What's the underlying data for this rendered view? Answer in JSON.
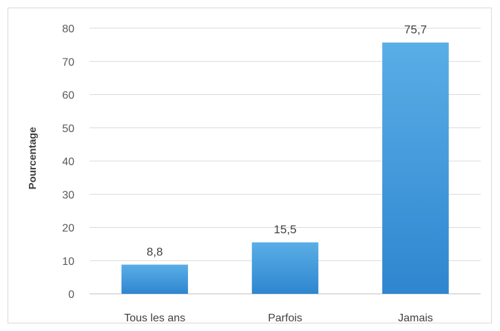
{
  "chart_data": {
    "type": "bar",
    "title": "",
    "xlabel": "",
    "ylabel": "Pourcentage",
    "ylim": [
      0,
      80
    ],
    "yticks": [
      0,
      10,
      20,
      30,
      40,
      50,
      60,
      70,
      80
    ],
    "grid": true,
    "legend": "none",
    "categories": [
      "Tous les ans",
      "Parfois",
      "Jamais"
    ],
    "values": [
      8.8,
      15.5,
      75.7
    ],
    "data_labels": [
      "8,8",
      "15,5",
      "75,7"
    ],
    "colors": {
      "bar_top": "#5aaee6",
      "bar_bottom": "#2e86cf",
      "grid": "#d9d9d9",
      "axis": "#bfbfbf"
    }
  }
}
